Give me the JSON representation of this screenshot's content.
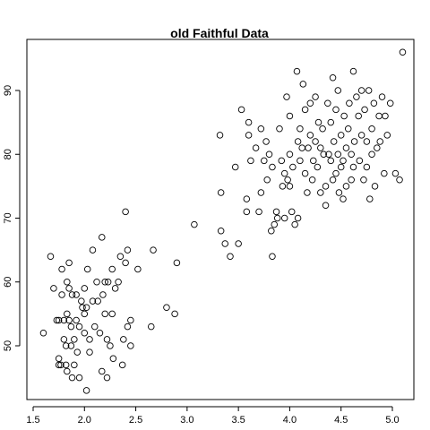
{
  "chart_data": {
    "type": "scatter",
    "title": "old Faithful Data",
    "xlabel": "",
    "ylabel": "",
    "xlim": [
      1.5,
      5.2
    ],
    "ylim": [
      42,
      97
    ],
    "x_ticks": [
      1.5,
      2.0,
      2.5,
      3.0,
      3.5,
      4.0,
      4.5,
      5.0
    ],
    "x_tick_labels": [
      "1.5",
      "2.0",
      "2.5",
      "3.0",
      "3.5",
      "4.0",
      "4.5",
      "5.0"
    ],
    "y_ticks": [
      50,
      60,
      70,
      80,
      90
    ],
    "y_tick_labels": [
      "50",
      "60",
      "70",
      "80",
      "90"
    ],
    "grid": false,
    "legend": "none",
    "marker": "open-circle",
    "points": [
      [
        1.6,
        52
      ],
      [
        1.67,
        64
      ],
      [
        1.7,
        59
      ],
      [
        1.73,
        54
      ],
      [
        1.75,
        54
      ],
      [
        1.75,
        48
      ],
      [
        1.75,
        47
      ],
      [
        1.77,
        47
      ],
      [
        1.78,
        62
      ],
      [
        1.78,
        58
      ],
      [
        1.8,
        54
      ],
      [
        1.8,
        51
      ],
      [
        1.82,
        50
      ],
      [
        1.82,
        47
      ],
      [
        1.83,
        46
      ],
      [
        1.83,
        55
      ],
      [
        1.83,
        60
      ],
      [
        1.85,
        59
      ],
      [
        1.85,
        63
      ],
      [
        1.85,
        54
      ],
      [
        1.87,
        53
      ],
      [
        1.87,
        50
      ],
      [
        1.88,
        45
      ],
      [
        1.88,
        58
      ],
      [
        1.9,
        51
      ],
      [
        1.9,
        47
      ],
      [
        1.92,
        58
      ],
      [
        1.92,
        54
      ],
      [
        1.93,
        49
      ],
      [
        1.95,
        53
      ],
      [
        1.95,
        45
      ],
      [
        1.97,
        57
      ],
      [
        1.98,
        56
      ],
      [
        2.0,
        55
      ],
      [
        2.0,
        59
      ],
      [
        2.0,
        52
      ],
      [
        2.02,
        43
      ],
      [
        2.02,
        56
      ],
      [
        2.03,
        62
      ],
      [
        2.05,
        49
      ],
      [
        2.05,
        51
      ],
      [
        2.08,
        65
      ],
      [
        2.08,
        57
      ],
      [
        2.1,
        53
      ],
      [
        2.12,
        60
      ],
      [
        2.13,
        57
      ],
      [
        2.15,
        52
      ],
      [
        2.17,
        67
      ],
      [
        2.17,
        46
      ],
      [
        2.18,
        58
      ],
      [
        2.2,
        55
      ],
      [
        2.2,
        60
      ],
      [
        2.22,
        45
      ],
      [
        2.22,
        51
      ],
      [
        2.23,
        60
      ],
      [
        2.25,
        50
      ],
      [
        2.27,
        62
      ],
      [
        2.27,
        55
      ],
      [
        2.28,
        48
      ],
      [
        2.3,
        59
      ],
      [
        2.33,
        60
      ],
      [
        2.35,
        64
      ],
      [
        2.37,
        47
      ],
      [
        2.38,
        51
      ],
      [
        2.4,
        63
      ],
      [
        2.4,
        71
      ],
      [
        2.42,
        53
      ],
      [
        2.42,
        65
      ],
      [
        2.45,
        54
      ],
      [
        2.45,
        50
      ],
      [
        2.52,
        62
      ],
      [
        2.65,
        53
      ],
      [
        2.67,
        65
      ],
      [
        2.8,
        56
      ],
      [
        2.88,
        55
      ],
      [
        2.9,
        63
      ],
      [
        3.07,
        69
      ],
      [
        3.32,
        83
      ],
      [
        3.33,
        74
      ],
      [
        3.33,
        68
      ],
      [
        3.37,
        66
      ],
      [
        3.42,
        64
      ],
      [
        3.47,
        78
      ],
      [
        3.5,
        66
      ],
      [
        3.53,
        87
      ],
      [
        3.58,
        71
      ],
      [
        3.58,
        73
      ],
      [
        3.6,
        85
      ],
      [
        3.6,
        83
      ],
      [
        3.62,
        79
      ],
      [
        3.67,
        81
      ],
      [
        3.7,
        71
      ],
      [
        3.72,
        74
      ],
      [
        3.72,
        84
      ],
      [
        3.75,
        79
      ],
      [
        3.77,
        82
      ],
      [
        3.78,
        76
      ],
      [
        3.8,
        80
      ],
      [
        3.82,
        68
      ],
      [
        3.83,
        64
      ],
      [
        3.83,
        78
      ],
      [
        3.85,
        69
      ],
      [
        3.87,
        71
      ],
      [
        3.88,
        70
      ],
      [
        3.9,
        84
      ],
      [
        3.92,
        79
      ],
      [
        3.93,
        75
      ],
      [
        3.95,
        77
      ],
      [
        3.95,
        70
      ],
      [
        3.97,
        89
      ],
      [
        3.98,
        76
      ],
      [
        4.0,
        86
      ],
      [
        4.0,
        80
      ],
      [
        4.0,
        75
      ],
      [
        4.02,
        71
      ],
      [
        4.03,
        78
      ],
      [
        4.05,
        69
      ],
      [
        4.07,
        93
      ],
      [
        4.08,
        82
      ],
      [
        4.08,
        70
      ],
      [
        4.1,
        79
      ],
      [
        4.1,
        84
      ],
      [
        4.12,
        81
      ],
      [
        4.13,
        91
      ],
      [
        4.15,
        87
      ],
      [
        4.15,
        77
      ],
      [
        4.17,
        74
      ],
      [
        4.18,
        81
      ],
      [
        4.2,
        88
      ],
      [
        4.2,
        83
      ],
      [
        4.22,
        76
      ],
      [
        4.23,
        79
      ],
      [
        4.25,
        82
      ],
      [
        4.25,
        89
      ],
      [
        4.27,
        78
      ],
      [
        4.28,
        85
      ],
      [
        4.3,
        81
      ],
      [
        4.3,
        74
      ],
      [
        4.32,
        84
      ],
      [
        4.33,
        80
      ],
      [
        4.35,
        72
      ],
      [
        4.35,
        75
      ],
      [
        4.37,
        88
      ],
      [
        4.38,
        80
      ],
      [
        4.4,
        85
      ],
      [
        4.4,
        79
      ],
      [
        4.42,
        76
      ],
      [
        4.42,
        92
      ],
      [
        4.43,
        82
      ],
      [
        4.45,
        87
      ],
      [
        4.45,
        77
      ],
      [
        4.47,
        80
      ],
      [
        4.47,
        90
      ],
      [
        4.48,
        74
      ],
      [
        4.5,
        83
      ],
      [
        4.5,
        78
      ],
      [
        4.52,
        73
      ],
      [
        4.52,
        79
      ],
      [
        4.53,
        86
      ],
      [
        4.55,
        81
      ],
      [
        4.55,
        75
      ],
      [
        4.57,
        84
      ],
      [
        4.58,
        88
      ],
      [
        4.6,
        80
      ],
      [
        4.6,
        76
      ],
      [
        4.62,
        78
      ],
      [
        4.62,
        93
      ],
      [
        4.63,
        82
      ],
      [
        4.65,
        89
      ],
      [
        4.67,
        86
      ],
      [
        4.68,
        79
      ],
      [
        4.7,
        83
      ],
      [
        4.7,
        90
      ],
      [
        4.72,
        76
      ],
      [
        4.73,
        87
      ],
      [
        4.75,
        82
      ],
      [
        4.75,
        78
      ],
      [
        4.77,
        90
      ],
      [
        4.78,
        73
      ],
      [
        4.8,
        84
      ],
      [
        4.8,
        80
      ],
      [
        4.82,
        88
      ],
      [
        4.83,
        75
      ],
      [
        4.85,
        81
      ],
      [
        4.87,
        86
      ],
      [
        4.88,
        82
      ],
      [
        4.9,
        89
      ],
      [
        4.92,
        77
      ],
      [
        4.93,
        86
      ],
      [
        4.95,
        83
      ],
      [
        4.98,
        88
      ],
      [
        5.03,
        77
      ],
      [
        5.07,
        76
      ],
      [
        5.1,
        96
      ]
    ]
  }
}
